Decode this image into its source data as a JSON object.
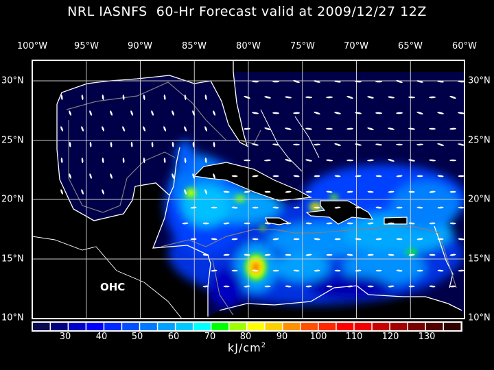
{
  "title": "NRL IASNFS  60-Hr Forecast valid at 2009/12/27 12Z",
  "field_label": "OHC",
  "longitude_labels": [
    "100°W",
    "95°W",
    "90°W",
    "85°W",
    "80°W",
    "75°W",
    "70°W",
    "65°W",
    "60°W"
  ],
  "latitude_labels": [
    "30°N",
    "25°N",
    "20°N",
    "15°N",
    "10°N"
  ],
  "colorbar": {
    "unit": "kJ/cm",
    "unit_exponent": "2",
    "tick_labels": [
      "30",
      "40",
      "50",
      "60",
      "70",
      "80",
      "90",
      "100",
      "110",
      "120",
      "130"
    ],
    "colors": [
      "#0a0a50",
      "#00007e",
      "#0000c8",
      "#0000ff",
      "#0028ff",
      "#0050ff",
      "#0078ff",
      "#00a0ff",
      "#00c8ff",
      "#00ffff",
      "#00ff00",
      "#a0ff00",
      "#ffff00",
      "#ffd000",
      "#ff9000",
      "#ff5000",
      "#ff2800",
      "#ff0000",
      "#f00000",
      "#c80000",
      "#a00000",
      "#780000",
      "#500000",
      "#300000"
    ]
  },
  "colors": {
    "ocean": "#000048",
    "land": "#000000",
    "coastline": "#ffffff",
    "bathymetry": "#808080",
    "grid": "#c8c8c8"
  }
}
